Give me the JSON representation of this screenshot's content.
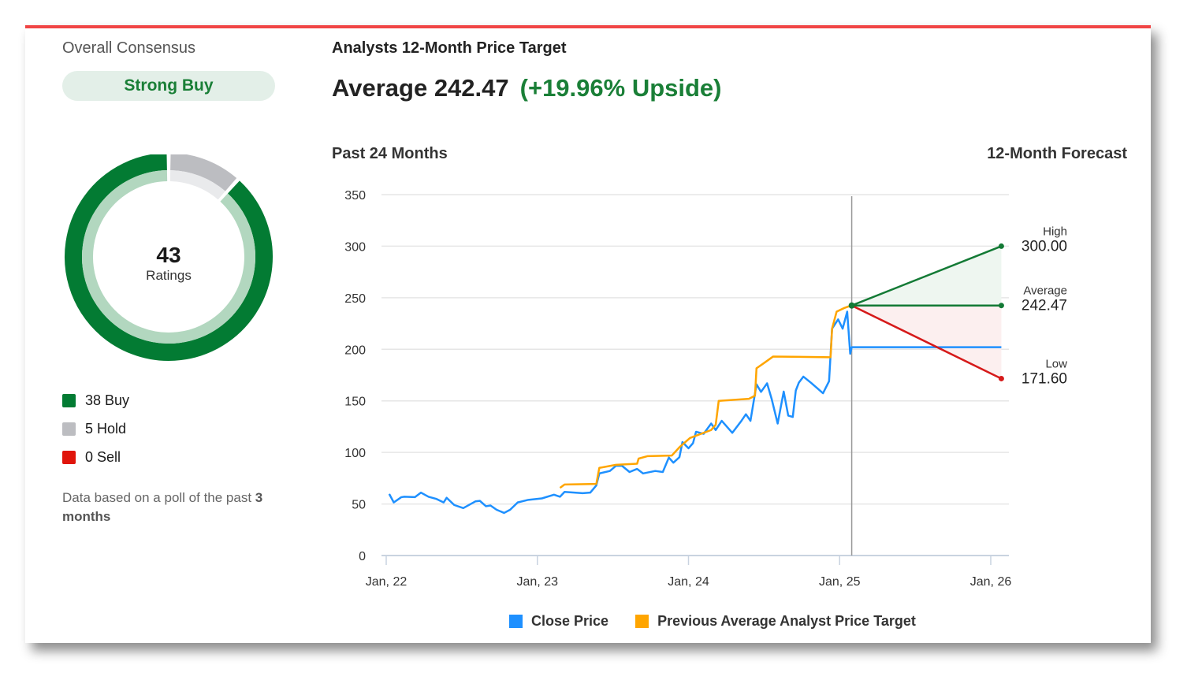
{
  "consensus": {
    "title": "Overall Consensus",
    "rating": "Strong Buy",
    "total": "43",
    "total_label": "Ratings",
    "breakdown": [
      {
        "label": "38 Buy",
        "count": 38,
        "color": "#037b33",
        "light": "#b2d7bf"
      },
      {
        "label": "5 Hold",
        "count": 5,
        "color": "#bcbdc1",
        "light": "#e9eaec"
      },
      {
        "label": "0 Sell",
        "count": 0,
        "color": "#e0150b",
        "light": "#f6c0bd"
      }
    ],
    "note_prefix": "Data based on a poll of the past ",
    "note_bold": "3 months"
  },
  "target": {
    "heading": "Analysts 12-Month Price Target",
    "average_label": "Average 242.47",
    "upside": "(+19.96% Upside)",
    "past_label": "Past 24 Months",
    "forecast_label": "12-Month Forecast"
  },
  "chart_data": {
    "type": "line",
    "ylim": [
      0,
      350
    ],
    "yticks": [
      "0",
      "50",
      "100",
      "150",
      "200",
      "250",
      "300",
      "350"
    ],
    "xlim": [
      2022,
      2026.15
    ],
    "xticks": [
      {
        "x": 2022,
        "label": "Jan, 22"
      },
      {
        "x": 2023,
        "label": "Jan, 23"
      },
      {
        "x": 2024,
        "label": "Jan, 24"
      },
      {
        "x": 2025,
        "label": "Jan, 25"
      },
      {
        "x": 2026,
        "label": "Jan, 26"
      }
    ],
    "grid": true,
    "legend_placement": "bottom",
    "series": [
      {
        "name": "Close Price",
        "color": "#1e90ff",
        "x": [
          2022.02,
          2022.05,
          2022.1,
          2022.12,
          2022.19,
          2022.23,
          2022.28,
          2022.33,
          2022.38,
          2022.4,
          2022.45,
          2022.51,
          2022.59,
          2022.62,
          2022.66,
          2022.69,
          2022.73,
          2022.78,
          2022.82,
          2022.87,
          2022.94,
          2023.03,
          2023.11,
          2023.15,
          2023.18,
          2023.3,
          2023.35,
          2023.39,
          2023.41,
          2023.48,
          2023.52,
          2023.56,
          2023.61,
          2023.66,
          2023.7,
          2023.78,
          2023.83,
          2023.87,
          2023.9,
          2023.94,
          2023.96,
          2024.0,
          2024.03,
          2024.05,
          2024.1,
          2024.15,
          2024.18,
          2024.22,
          2024.29,
          2024.35,
          2024.38,
          2024.41,
          2024.45,
          2024.48,
          2024.52,
          2024.55,
          2024.59,
          2024.63,
          2024.66,
          2024.69,
          2024.71,
          2024.73,
          2024.76,
          2024.81,
          2024.85,
          2024.89,
          2024.93,
          2024.95,
          2024.99,
          2025.02,
          2025.05,
          2025.07,
          2025.08,
          2026.07
        ],
        "y": [
          59.7,
          51.5,
          56.6,
          57,
          56.6,
          61,
          57,
          55,
          51.5,
          56,
          49,
          46,
          52.5,
          53,
          47.8,
          48.5,
          44.4,
          41.3,
          44.4,
          51.5,
          54,
          55.4,
          59,
          57,
          61.7,
          60.5,
          61,
          68,
          79.6,
          82,
          87,
          87,
          81,
          84,
          79.6,
          82,
          81,
          95,
          90,
          95.4,
          110,
          104,
          109,
          120,
          118,
          128,
          121.7,
          130.6,
          119,
          130.6,
          137,
          130.6,
          166,
          158.7,
          167,
          152,
          128,
          159,
          135.7,
          134.4,
          160,
          167.6,
          173.5,
          167.6,
          162.5,
          157.4,
          169,
          220,
          229,
          220,
          236.5,
          195.7,
          202,
          202
        ]
      },
      {
        "name": "Previous Average Analyst Price Target",
        "color": "#ffa500",
        "x": [
          2023.15,
          2023.18,
          2023.39,
          2023.41,
          2023.52,
          2023.66,
          2023.67,
          2023.73,
          2023.89,
          2023.94,
          2024.01,
          2024.15,
          2024.18,
          2024.2,
          2024.4,
          2024.44,
          2024.45,
          2024.5,
          2024.56,
          2024.94,
          2024.95,
          2024.98,
          2025.03,
          2025.06
        ],
        "y": [
          65.6,
          68.9,
          69.4,
          85,
          88,
          89,
          94,
          96.4,
          97,
          105,
          114,
          121.7,
          126.8,
          150,
          152,
          155,
          181.6,
          186.7,
          193,
          192.3,
          220,
          236.5,
          240,
          241.6
        ]
      }
    ],
    "forecast": {
      "start_x": 2025.08,
      "end_x": 2026.07,
      "start_y": 242.47,
      "high": {
        "label": "High",
        "value": 300.0,
        "text": "300.00",
        "color": "#137a35"
      },
      "average": {
        "label": "Average",
        "value": 242.47,
        "text": "242.47",
        "color": "#137a35"
      },
      "low": {
        "label": "Low",
        "value": 171.6,
        "text": "171.60",
        "color": "#d61a1a"
      },
      "upper_fill": "#eef6f0",
      "lower_fill": "#fcefef"
    }
  }
}
